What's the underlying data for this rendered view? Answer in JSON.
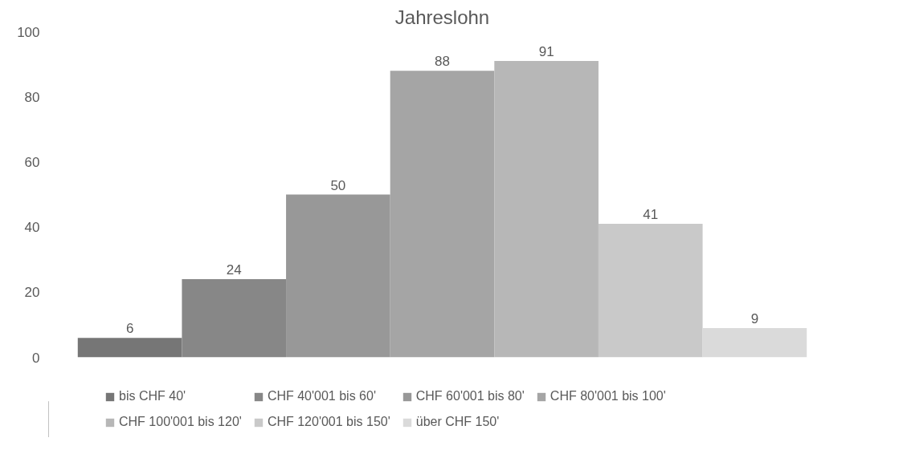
{
  "chart_data": {
    "type": "bar",
    "title": "Jahreslohn",
    "categories": [
      null
    ],
    "series": [
      {
        "name": "bis CHF 40'",
        "color": "#767676",
        "values": [
          6
        ]
      },
      {
        "name": "CHF 40'001 bis 60'",
        "color": "#878787",
        "values": [
          24
        ]
      },
      {
        "name": "CHF 60'001 bis 80'",
        "color": "#989898",
        "values": [
          50
        ]
      },
      {
        "name": "CHF 80'001 bis 100'",
        "color": "#a5a5a5",
        "values": [
          88
        ]
      },
      {
        "name": "CHF 100'001 bis 120'",
        "color": "#b7b7b7",
        "values": [
          91
        ]
      },
      {
        "name": "CHF 120'001 bis 150'",
        "color": "#c9c9c9",
        "values": [
          41
        ]
      },
      {
        "name": "über CHF 150'",
        "color": "#dadada",
        "values": [
          9
        ]
      }
    ],
    "ylim": [
      0,
      100
    ],
    "yticks": [
      0,
      20,
      40,
      60,
      80,
      100
    ],
    "grid": false,
    "legend": "bottom",
    "data_labels": true
  }
}
